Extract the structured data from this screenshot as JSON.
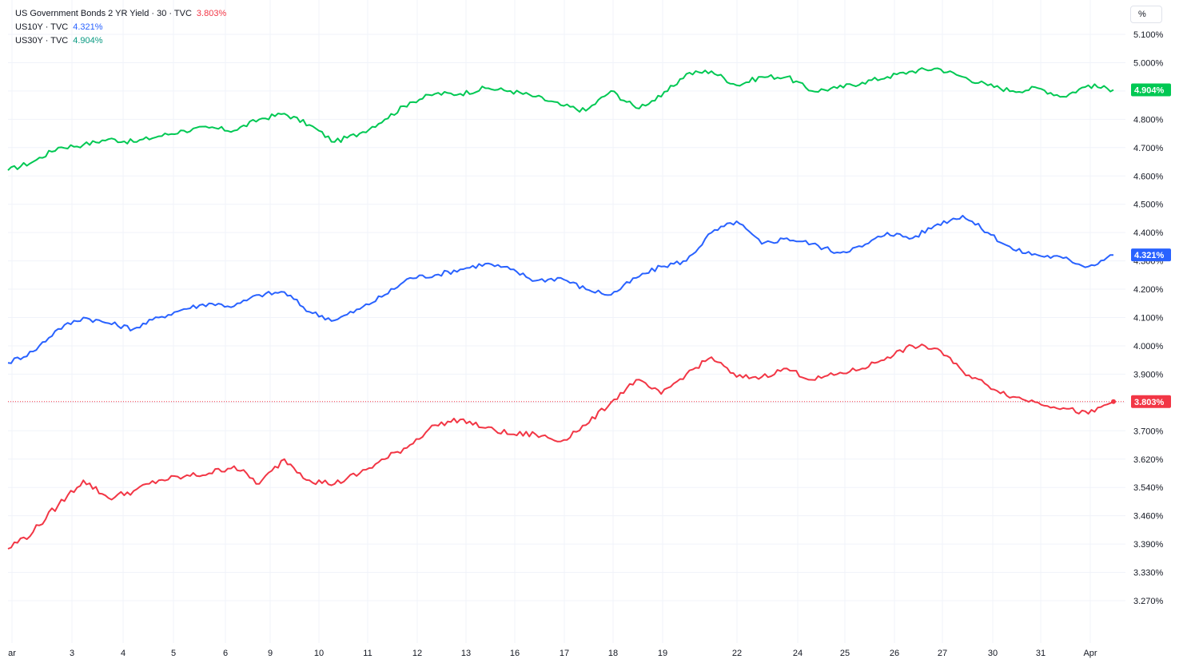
{
  "legend": [
    {
      "name": "US Government Bonds 2 YR Yield · 30 · TVC",
      "value": "3.803%",
      "color": "#f23645"
    },
    {
      "name": "US10Y · TVC",
      "value": "4.321%",
      "color": "#2962ff"
    },
    {
      "name": "US30Y · TVC",
      "value": "4.904%",
      "color": "#089981"
    }
  ],
  "unit_label": "%",
  "chart_data": {
    "type": "line",
    "y_axis": {
      "ticks": [
        "5.100%",
        "5.000%",
        "4.900%",
        "4.800%",
        "4.700%",
        "4.600%",
        "4.500%",
        "4.400%",
        "4.300%",
        "4.200%",
        "4.100%",
        "4.000%",
        "3.900%",
        "3.800%",
        "3.700%",
        "3.620%",
        "3.540%",
        "3.460%",
        "3.390%",
        "3.330%",
        "3.270%"
      ]
    },
    "x_axis": {
      "ticks": [
        "ar",
        "3",
        "4",
        "5",
        "6",
        "9",
        "10",
        "11",
        "12",
        "13",
        "16",
        "17",
        "18",
        "19",
        "22",
        "24",
        "25",
        "26",
        "27",
        "30",
        "31",
        "Apr"
      ]
    },
    "series": [
      {
        "name": "US30Y",
        "color": "#00c853",
        "last": 4.904,
        "last_label": "4.904%",
        "values": [
          4.62,
          4.65,
          4.7,
          4.71,
          4.73,
          4.72,
          4.74,
          4.76,
          4.77,
          4.76,
          4.8,
          4.82,
          4.78,
          4.72,
          4.75,
          4.8,
          4.86,
          4.89,
          4.89,
          4.91,
          4.9,
          4.88,
          4.85,
          4.83,
          4.9,
          4.84,
          4.88,
          4.96,
          4.97,
          4.92,
          4.95,
          4.95,
          4.9,
          4.91,
          4.93,
          4.95,
          4.97,
          4.98,
          4.95,
          4.92,
          4.9,
          4.91,
          4.88,
          4.92,
          4.904
        ]
      },
      {
        "name": "US10Y",
        "color": "#2962ff",
        "last": 4.321,
        "last_label": "4.321%",
        "values": [
          3.94,
          3.98,
          4.06,
          4.1,
          4.08,
          4.06,
          4.1,
          4.13,
          4.15,
          4.14,
          4.18,
          4.19,
          4.12,
          4.09,
          4.13,
          4.18,
          4.24,
          4.25,
          4.27,
          4.29,
          4.27,
          4.23,
          4.24,
          4.2,
          4.18,
          4.24,
          4.28,
          4.3,
          4.4,
          4.44,
          4.36,
          4.38,
          4.36,
          4.33,
          4.35,
          4.4,
          4.38,
          4.43,
          4.46,
          4.4,
          4.34,
          4.32,
          4.31,
          4.28,
          4.321
        ]
      },
      {
        "name": "US2Y",
        "color": "#f23645",
        "last": 3.803,
        "last_label": "3.803%",
        "values": [
          3.38,
          3.42,
          3.49,
          3.56,
          3.51,
          3.53,
          3.56,
          3.57,
          3.58,
          3.6,
          3.55,
          3.62,
          3.56,
          3.55,
          3.58,
          3.62,
          3.66,
          3.72,
          3.74,
          3.71,
          3.69,
          3.69,
          3.67,
          3.72,
          3.8,
          3.88,
          3.83,
          3.9,
          3.96,
          3.89,
          3.89,
          3.92,
          3.88,
          3.9,
          3.92,
          3.96,
          4.0,
          3.99,
          3.91,
          3.86,
          3.82,
          3.8,
          3.78,
          3.76,
          3.803
        ]
      }
    ],
    "last_price_line": 3.803,
    "grid": true,
    "legend_position": "top-left"
  }
}
